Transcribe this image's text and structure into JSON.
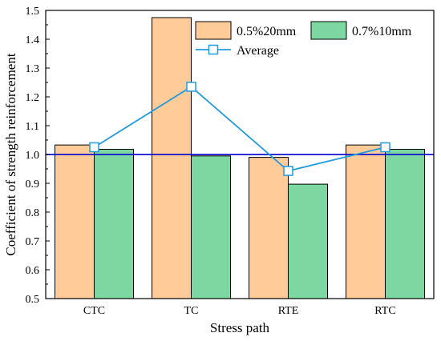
{
  "chart_data": {
    "type": "bar",
    "categories": [
      "CTC",
      "TC",
      "RTE",
      "RTC"
    ],
    "series": [
      {
        "name": "0.5%20mm",
        "type": "bar",
        "values": [
          1.033,
          1.475,
          0.99,
          1.033
        ],
        "color": "#FFCC99"
      },
      {
        "name": "0.7%10mm",
        "type": "bar",
        "values": [
          1.018,
          0.995,
          0.897,
          1.018
        ],
        "color": "#7DD7A0"
      },
      {
        "name": "Average",
        "type": "line",
        "values": [
          1.025,
          1.235,
          0.943,
          1.025
        ],
        "color": "#1F9BDE"
      }
    ],
    "reference_line": {
      "value": 1.0,
      "color": "#1010D0"
    },
    "xlabel": "Stress path",
    "ylabel": "Coefficient of strength reinforcement",
    "ylim": [
      0.5,
      1.5
    ],
    "yticks": [
      "0.5",
      "0.6",
      "0.7",
      "0.8",
      "0.9",
      "1.0",
      "1.1",
      "1.2",
      "1.3",
      "1.4",
      "1.5"
    ],
    "grid": false,
    "legend_position": "top-right"
  }
}
